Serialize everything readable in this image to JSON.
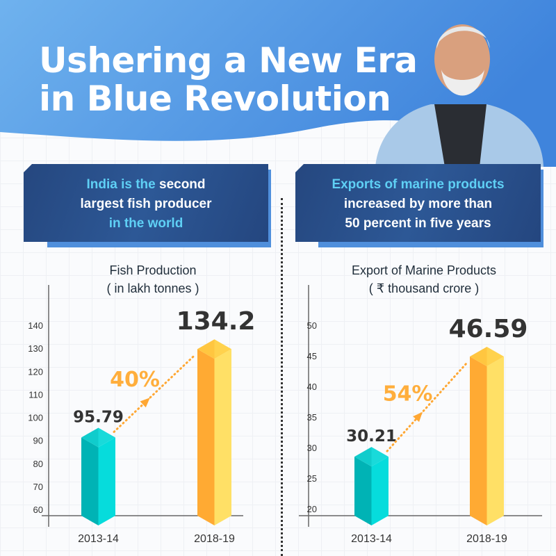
{
  "title_lines": [
    "Ushering a New Era",
    "in Blue Revolution"
  ],
  "left_box": {
    "highlight1": "India is the",
    "text1": " second",
    "text2": "largest fish producer",
    "highlight2": "in the world"
  },
  "right_box": {
    "highlight1": "Exports of marine products",
    "text1": "increased by more than",
    "text2": "50 percent in five years"
  },
  "colors": {
    "teal": "#06d8d8",
    "orange": "#ffaa33",
    "yellow": "#ffe066",
    "header": "#4a8fe0",
    "box": "#264a85"
  },
  "chart_data": [
    {
      "type": "bar",
      "title": "Fish Production",
      "subtitle": "( in lakh tonnes )",
      "categories": [
        "2013-14",
        "2018-19"
      ],
      "values": [
        95.79,
        134.2
      ],
      "value_labels": [
        "95.79",
        "134.2"
      ],
      "ylim": [
        60,
        140
      ],
      "yticks": [
        "60",
        "70",
        "80",
        "90",
        "100",
        "110",
        "120",
        "130",
        "140"
      ],
      "growth_label": "40%"
    },
    {
      "type": "bar",
      "title": "Export of Marine Products",
      "subtitle": "( ₹ thousand crore )",
      "categories": [
        "2013-14",
        "2018-19"
      ],
      "values": [
        30.21,
        46.59
      ],
      "value_labels": [
        "30.21",
        "46.59"
      ],
      "ylim": [
        20,
        50
      ],
      "yticks": [
        "20",
        "25",
        "30",
        "35",
        "40",
        "45",
        "50"
      ],
      "growth_label": "54%"
    }
  ]
}
